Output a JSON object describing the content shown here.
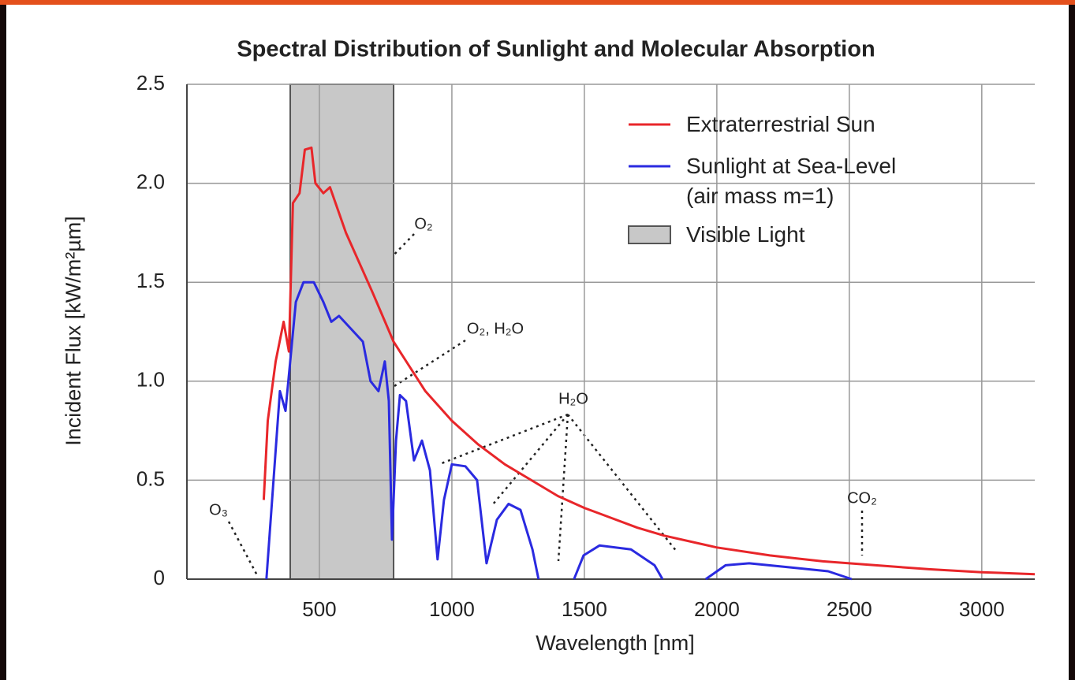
{
  "chart_data": {
    "type": "line",
    "title": "Spectral Distribution of Sunlight and Molecular Absorption",
    "xlabel": "Wavelength [nm]",
    "ylabel": "Incident Flux [kW/m²µm]",
    "xlim": [
      0,
      3200
    ],
    "ylim": [
      0,
      2.5
    ],
    "xticks": [
      500,
      1000,
      1500,
      2000,
      2500,
      3000
    ],
    "yticks": [
      0,
      0.5,
      {
        "value": 1,
        "label": "1.0"
      },
      1.5,
      {
        "value": 2,
        "label": "2.0"
      },
      2.5
    ],
    "grid": true,
    "legend": "upper right",
    "series": [
      {
        "name": "Extraterrestrial Sun",
        "color": "#e8262a",
        "x": [
          290,
          305,
          335,
          365,
          385,
          400,
          425,
          445,
          470,
          485,
          515,
          540,
          600,
          700,
          780,
          900,
          1000,
          1100,
          1200,
          1300,
          1400,
          1500,
          1600,
          1700,
          1800,
          2000,
          2200,
          2400,
          2600,
          2800,
          3000,
          3200
        ],
        "values": [
          0.4,
          0.8,
          1.1,
          1.3,
          1.15,
          1.9,
          1.95,
          2.17,
          2.18,
          2.0,
          1.95,
          1.98,
          1.75,
          1.45,
          1.2,
          0.95,
          0.8,
          0.68,
          0.58,
          0.5,
          0.42,
          0.36,
          0.31,
          0.26,
          0.22,
          0.16,
          0.12,
          0.09,
          0.07,
          0.05,
          0.035,
          0.025
        ]
      },
      {
        "name": "Sunlight at Sea-Level\n(air mass m=1)",
        "color": "#2a2ae0",
        "x": [
          300,
          351,
          372,
          411,
          440,
          479,
          515,
          545,
          574,
          664,
          693,
          723,
          747,
          762,
          774,
          789,
          804,
          827,
          857,
          887,
          917,
          946,
          970,
          1000,
          1051,
          1095,
          1131,
          1170,
          1214,
          1259,
          1304,
          1327,
          1400,
          1461,
          1497,
          1557,
          1676,
          1765,
          1795,
          1880,
          1958,
          2033,
          2122,
          2271,
          2420,
          2509
        ],
        "values": [
          0,
          0.95,
          0.85,
          1.4,
          1.5,
          1.5,
          1.4,
          1.3,
          1.33,
          1.2,
          1.0,
          0.95,
          1.1,
          0.9,
          0.2,
          0.7,
          0.93,
          0.9,
          0.6,
          0.7,
          0.55,
          0.1,
          0.4,
          0.58,
          0.57,
          0.5,
          0.08,
          0.3,
          0.38,
          0.35,
          0.15,
          0,
          null,
          0,
          0.12,
          0.17,
          0.15,
          0.07,
          0,
          null,
          0,
          0.07,
          0.08,
          0.06,
          0.04,
          0
        ]
      }
    ],
    "visible_band": {
      "name": "Visible Light",
      "color": "#c8c8c8",
      "range": [
        390,
        780
      ]
    },
    "annotations": [
      "O₃",
      "O₂",
      "O₂, H₂O",
      "H₂O",
      "CO₂"
    ]
  }
}
